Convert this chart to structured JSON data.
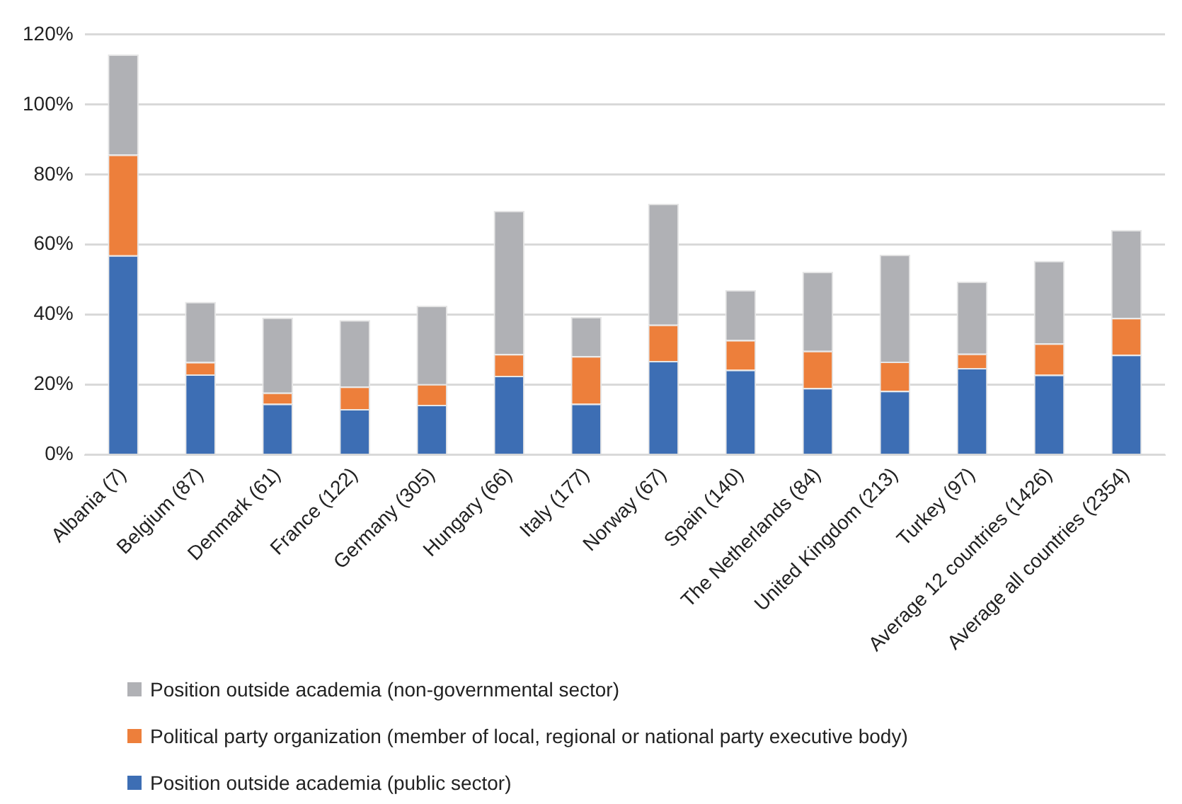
{
  "chart_data": {
    "type": "bar",
    "stacked": true,
    "legend": "bottom",
    "grid": "y",
    "categories": [
      "Albania (7)",
      "Belgium (87)",
      "Denmark (61)",
      "France (122)",
      "Germany (305)",
      "Hungary (66)",
      "Italy (177)",
      "Norway (67)",
      "Spain (140)",
      "The Netherlands (84)",
      "United Kingdom (213)",
      "Turkey (97)",
      "Average 12 countries (1426)",
      "Average all countries (2354)"
    ],
    "series": [
      {
        "name": "Position outside academia (public sector)",
        "color": "#3d6eb4",
        "values": [
          57,
          23,
          14.6,
          13.1,
          14.3,
          22.6,
          14.6,
          26.8,
          24.3,
          19.1,
          18.3,
          24.8,
          22.9,
          28.6
        ]
      },
      {
        "name": "Political party organization (member of local, regional or national party executive body)",
        "color": "#ed7f3b",
        "values": [
          28.7,
          3.5,
          3.2,
          6.4,
          5.9,
          6.2,
          13.6,
          10.4,
          8.5,
          10.6,
          8.3,
          4.1,
          8.9,
          10.5
        ]
      },
      {
        "name": "Position outside academia (non-governmental sector)",
        "color": "#b0b1b5",
        "values": [
          28.6,
          17.2,
          21.4,
          19,
          22.4,
          40.9,
          11.2,
          34.5,
          14.3,
          22.6,
          30.6,
          20.6,
          23.6,
          25.1
        ]
      }
    ],
    "ylim": [
      0,
      120
    ],
    "yticks": [
      {
        "value": 0,
        "label": "0%"
      },
      {
        "value": 20,
        "label": "20%"
      },
      {
        "value": 40,
        "label": "40%"
      },
      {
        "value": 60,
        "label": "60%"
      },
      {
        "value": 80,
        "label": "80%"
      },
      {
        "value": 100,
        "label": "100%"
      },
      {
        "value": 120,
        "label": "120%"
      }
    ]
  }
}
